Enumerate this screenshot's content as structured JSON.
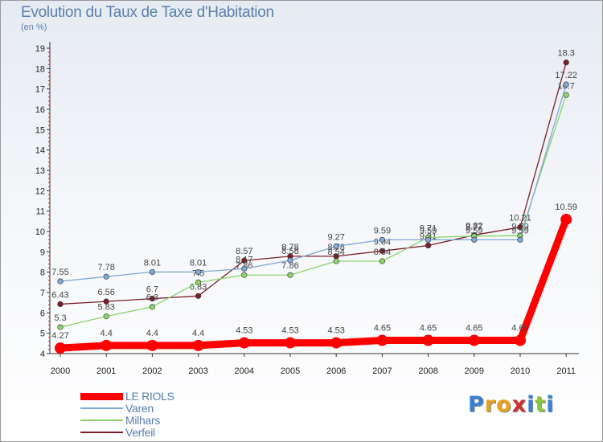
{
  "title": "Evolution du Taux de Taxe d'Habitation",
  "subtitle": "(en %)",
  "logo": {
    "letters": [
      "P",
      "r",
      "o",
      "x",
      "i",
      "t",
      "i"
    ],
    "colors": [
      "#3a7fd5",
      "#e8a020",
      "#e8a020",
      "#d03030",
      "#3a7fd5",
      "#8cc63e",
      "#3a7fd5"
    ]
  },
  "chart_data": {
    "type": "line",
    "x": [
      "2000",
      "2001",
      "2002",
      "2003",
      "2004",
      "2005",
      "2006",
      "2007",
      "2008",
      "2009",
      "2010",
      "2011"
    ],
    "ylim": [
      4,
      19
    ],
    "yticks": [
      4,
      5,
      6,
      7,
      8,
      9,
      10,
      11,
      12,
      13,
      14,
      15,
      16,
      17,
      18,
      19
    ],
    "legend_position": "bottom-left",
    "grid": false,
    "series": [
      {
        "name": "LE RIOLS",
        "color": "#ff0000",
        "values": [
          4.27,
          4.4,
          4.4,
          4.4,
          4.53,
          4.53,
          4.53,
          4.65,
          4.65,
          4.65,
          4.65,
          10.59
        ],
        "labels": [
          "4.27",
          "4.4",
          "4.4",
          "4.4",
          "4.53",
          "4.53",
          "4.53",
          "4.65",
          "4.65",
          "4.65",
          "4.65",
          "10.59"
        ]
      },
      {
        "name": "Varen",
        "color": "#7fa8d4",
        "values": [
          7.55,
          7.78,
          8.01,
          8.01,
          8.17,
          8.58,
          9.27,
          9.59,
          9.59,
          9.59,
          9.59,
          17.22
        ],
        "labels": [
          "7.55",
          "7.78",
          "8.01",
          "8.01",
          "8.17",
          "8.58",
          "9.27",
          "9.59",
          "9.59",
          "9.59",
          "9.59",
          "17.22"
        ]
      },
      {
        "name": "Milhars",
        "color": "#8cd46a",
        "values": [
          5.3,
          5.83,
          6.3,
          7.5,
          7.86,
          7.86,
          8.54,
          8.54,
          9.71,
          9.77,
          9.79,
          16.7
        ],
        "labels": [
          "5.3",
          "5.83",
          "6.3",
          "7.5",
          "7.86",
          "7.86",
          "8.54",
          "8.54",
          "9.71",
          "9.77",
          "9.79",
          "16.7"
        ]
      },
      {
        "name": "Verfeil",
        "color": "#7a1f28",
        "values": [
          6.43,
          6.56,
          6.7,
          6.83,
          8.57,
          8.78,
          8.78,
          9.04,
          9.31,
          9.82,
          10.21,
          18.3
        ],
        "labels": [
          "6.43",
          "6.56",
          "6.7",
          "6.83",
          "8.57",
          "8.78",
          "8.78",
          "9.04",
          "9.31",
          "9.82",
          "10.21",
          "18.3"
        ]
      }
    ]
  }
}
